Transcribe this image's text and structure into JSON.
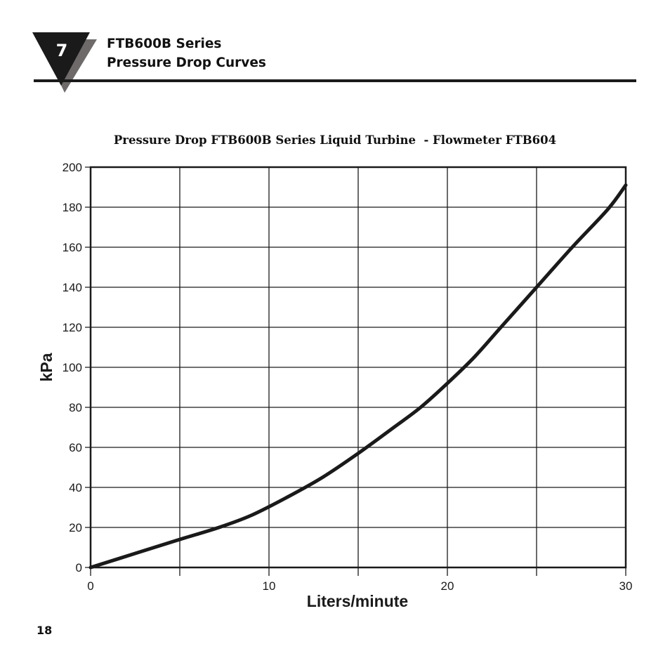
{
  "header": {
    "section_number": "7",
    "title_line1": "FTB600B Series",
    "title_line2": "Pressure Drop Curves"
  },
  "page_number": "18",
  "chart_data": {
    "type": "line",
    "title": "Pressure Drop FTB600B Series Liquid Turbine  - Flowmeter FTB604",
    "xlabel": "Liters/minute",
    "ylabel": "kPa",
    "xlim": [
      0,
      30
    ],
    "ylim": [
      0,
      200
    ],
    "x_ticks": [
      0,
      10,
      20,
      30
    ],
    "x_grid": [
      0,
      5,
      10,
      15,
      20,
      25,
      30
    ],
    "y_ticks": [
      0,
      20,
      40,
      60,
      80,
      100,
      120,
      140,
      160,
      180,
      200
    ],
    "grid": true,
    "series": [
      {
        "x": [
          0,
          2.5,
          5,
          7.2,
          9,
          11,
          13,
          15,
          17,
          18.5,
          20,
          21.5,
          23,
          25,
          27,
          29,
          30
        ],
        "values": [
          0,
          7,
          14,
          20,
          26,
          35,
          45,
          57,
          70,
          80,
          92,
          105,
          120,
          140,
          160,
          179,
          191
        ]
      }
    ]
  }
}
